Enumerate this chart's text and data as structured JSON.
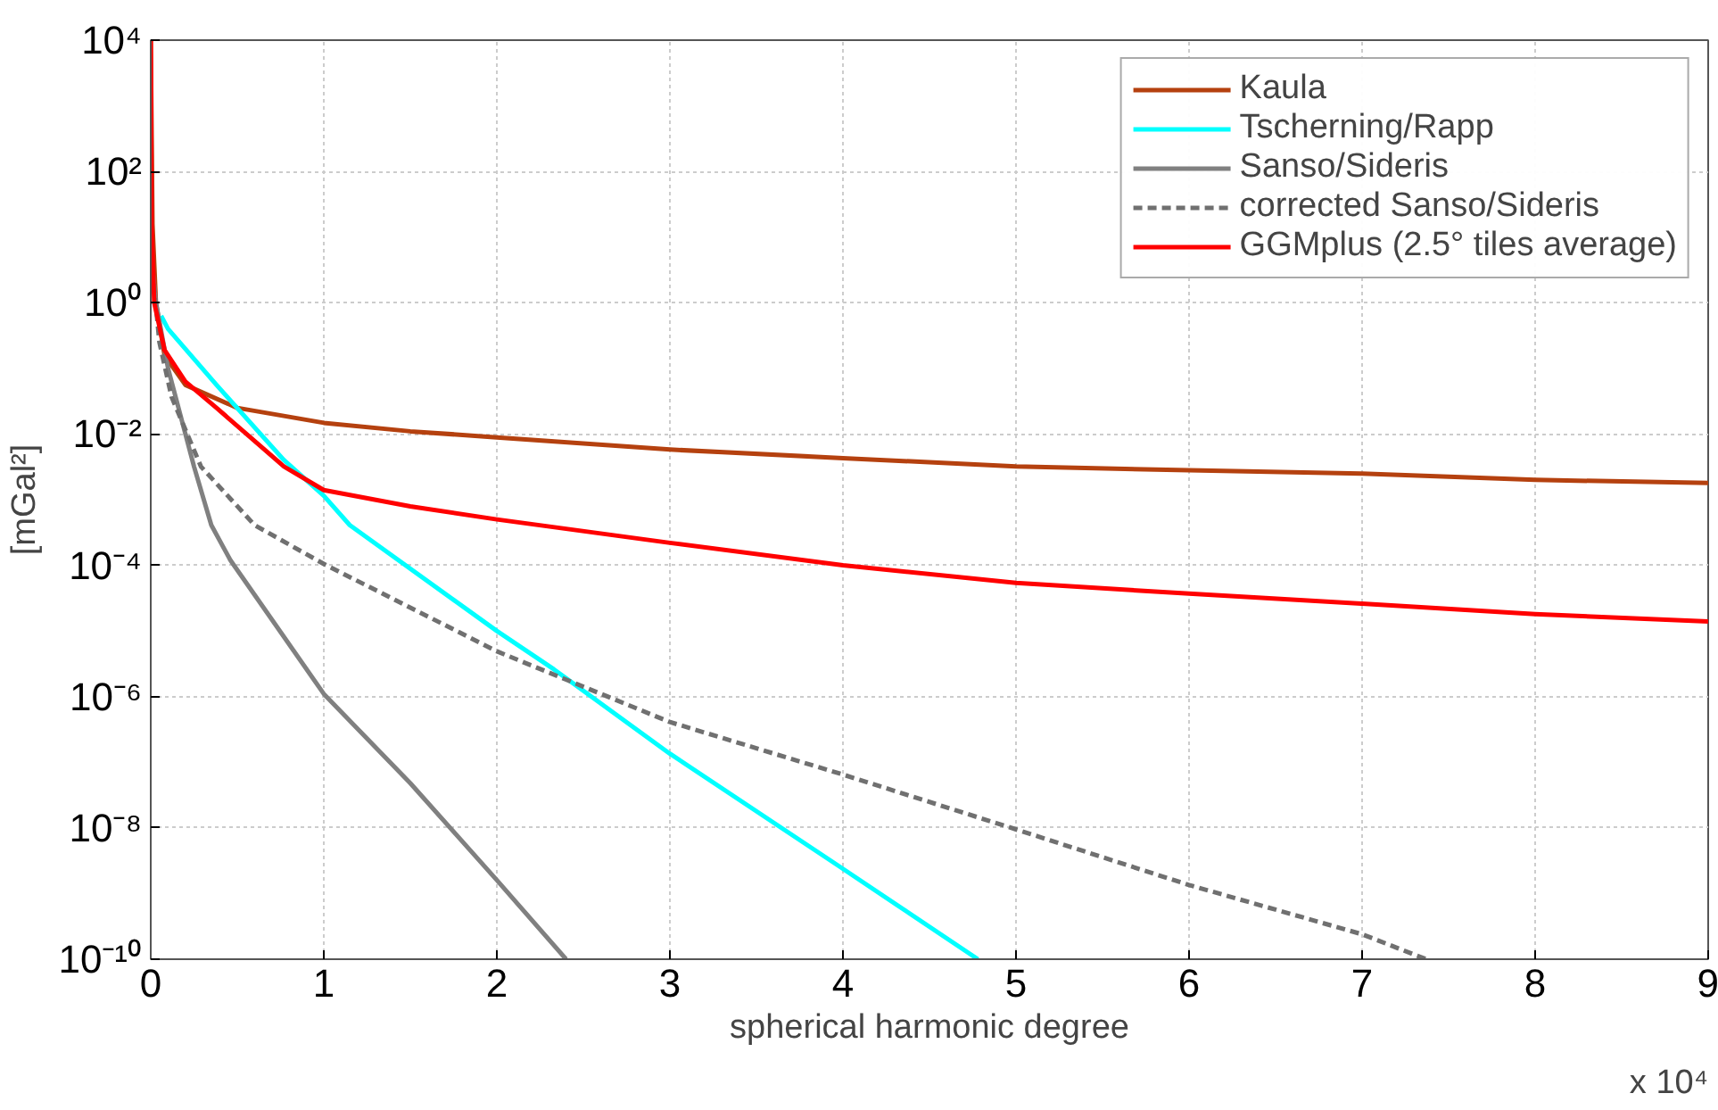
{
  "chart_data": {
    "type": "line",
    "xlabel": "spherical harmonic degree",
    "ylabel": "[mGal²]",
    "annotations": [
      "x 10⁴"
    ],
    "xlim": [
      0,
      9
    ],
    "xticks": [
      0,
      1,
      2,
      3,
      4,
      5,
      6,
      7,
      8,
      9
    ],
    "log": "y",
    "ylim": [
      1e-10,
      10000
    ],
    "yticks": [
      {
        "value": 1e-10,
        "label": "10⁻¹⁰"
      },
      {
        "value": 1e-08,
        "label": "10⁻⁸"
      },
      {
        "value": 1e-06,
        "label": "10⁻⁶"
      },
      {
        "value": 0.0001,
        "label": "10⁻⁴"
      },
      {
        "value": 0.01,
        "label": "10⁻²"
      },
      {
        "value": 1,
        "label": "10⁰"
      },
      {
        "value": 100,
        "label": "10²"
      },
      {
        "value": 10000,
        "label": "10⁴"
      }
    ],
    "grid": true,
    "legend": "top right",
    "line_style": "solid",
    "marker": "none",
    "series": [
      {
        "name": "Kaula",
        "color": "#b5410f",
        "x": [
          0,
          0.01,
          0.03,
          0.08,
          0.2,
          0.5,
          1,
          1.5,
          2,
          3,
          4,
          5,
          6,
          7,
          8,
          9
        ],
        "values": [
          10000,
          15.8,
          1,
          0.158,
          0.056,
          0.025,
          0.0148,
          0.011,
          0.0089,
          0.0058,
          0.0043,
          0.0032,
          0.0028,
          0.0025,
          0.002,
          0.0018
        ]
      },
      {
        "name": "Tscherning/Rapp",
        "color": "#00ffff",
        "x": [
          0.06,
          0.1,
          0.38,
          0.77,
          1.0,
          1.15,
          2.0,
          2.33,
          3.0,
          3.96,
          4.78
        ],
        "values": [
          0.63,
          0.4,
          0.056,
          0.004,
          0.00115,
          0.00041,
          1e-05,
          2.6e-06,
          1.35e-07,
          2.8e-09,
          1e-10
        ]
      },
      {
        "name": "Sanso/Sideris",
        "color": "#808080",
        "x": [
          0.01,
          0.03,
          0.1,
          0.25,
          0.35,
          0.46,
          1,
          1.5,
          2,
          2.4
        ],
        "values": [
          3.2,
          1,
          0.1,
          0.0032,
          0.00041,
          0.00012,
          1.1e-06,
          4.8e-08,
          1.6e-09,
          1e-10
        ]
      },
      {
        "name": "corrected Sanso/Sideris",
        "color": "#707070",
        "line_style": "dashed",
        "x": [
          0.01,
          0.05,
          0.12,
          0.29,
          0.6,
          1,
          2,
          3,
          4,
          5,
          6,
          7,
          7.37
        ],
        "values": [
          3.2,
          0.25,
          0.037,
          0.0032,
          0.00041,
          0.000105,
          4.9e-06,
          4.1e-07,
          6.5e-08,
          9.5e-09,
          1.35e-09,
          2.4e-10,
          1e-10
        ]
      },
      {
        "name": "GGMplus (2.5° tiles average)",
        "color": "#ff0000",
        "x": [
          0,
          0.005,
          0.02,
          0.08,
          0.2,
          0.38,
          0.77,
          1,
          1.5,
          2,
          3,
          4,
          5,
          6,
          7,
          8,
          9
        ],
        "values": [
          10000,
          16,
          1,
          0.19,
          0.063,
          0.025,
          0.0032,
          0.0014,
          0.00079,
          0.0005,
          0.00022,
          0.0001,
          5.4e-05,
          3.7e-05,
          2.6e-05,
          1.8e-05,
          1.4e-05
        ]
      }
    ]
  }
}
